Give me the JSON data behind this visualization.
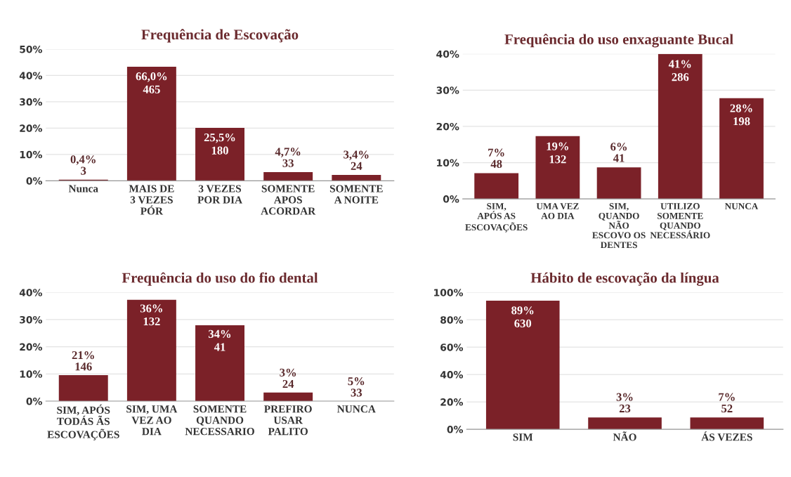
{
  "chart_data": [
    {
      "type": "bar",
      "title": "Frequência de Escovação",
      "categories": [
        "Nunca",
        "MAIS DE\n3 VEZES\nPÓR",
        "3 VEZES\nPOR DIA",
        "SOMENTE\nAPOS\nACORDAR",
        "SOMENTE\nA NOITE"
      ],
      "values": [
        0.4,
        43.3,
        20.1,
        3.3,
        2.2
      ],
      "color": "#7b2128",
      "ylim": [
        0,
        50
      ],
      "yticks": [
        {
          "value": 0,
          "label": "0%"
        },
        {
          "value": 10,
          "label": "10%"
        },
        {
          "value": 20,
          "label": "20%"
        },
        {
          "value": 30,
          "label": "30%"
        },
        {
          "value": 40,
          "label": "40%"
        },
        {
          "value": 50,
          "label": "50%"
        }
      ],
      "grid": "y",
      "annotations": [
        {
          "text": "0,4%\n3",
          "x": "Nunca",
          "y": 0.4
        },
        {
          "text": "66,0%\n465",
          "x": "MAIS DE\n3 VEZES\nPÓR",
          "y": 43.3
        },
        {
          "text": "25,5%\n180",
          "x": "3 VEZES\nPOR DIA",
          "y": 20.1
        },
        {
          "text": "4,7%\n33",
          "x": "SOMENTE\nAPOS\nACORDAR",
          "y": 3.3
        },
        {
          "text": "3,4%\n24",
          "x": "SOMENTE\nA NOITE",
          "y": 2.2
        }
      ]
    },
    {
      "type": "bar",
      "title": "Frequência do uso enxaguante Bucal",
      "categories": [
        "SIM,\nAPÓS AS\nESCOVAÇÕES",
        "UMA VEZ\nAO DIA",
        "SIM,\nQUANDO\nNÃO\nESCOVO OS\nDENTES",
        "UTILIZO\nSOMENTE\nQUANDO\nNECESSÁRIO",
        "NUNCA"
      ],
      "values": [
        7.1,
        17.3,
        8.7,
        40,
        27.8
      ],
      "color": "#7b2128",
      "ylim": [
        0,
        40
      ],
      "yticks": [
        {
          "value": 0,
          "label": "0%"
        },
        {
          "value": 10,
          "label": "10%"
        },
        {
          "value": 20,
          "label": "20%"
        },
        {
          "value": 30,
          "label": "30%"
        },
        {
          "value": 40,
          "label": "40%"
        }
      ],
      "grid": "y",
      "annotations": [
        {
          "text": "7%\n48",
          "x": "SIM,\nAPÓS AS\nESCOVAÇÕES",
          "y": 7.1
        },
        {
          "text": "19%\n132",
          "x": "UMA VEZ\nAO DIA",
          "y": 17.3
        },
        {
          "text": "6%\n41",
          "x": "SIM,\nQUANDO\nNÃO\nESCOVO OS\nDENTES",
          "y": 8.7
        },
        {
          "text": "41%\n286",
          "x": "UTILIZO\nSOMENTE\nQUANDO\nNECESSÁRIO",
          "y": 40
        },
        {
          "text": "28%\n198",
          "x": "NUNCA",
          "y": 27.8
        }
      ]
    },
    {
      "type": "bar",
      "title": "Frequência do uso do fio dental",
      "categories": [
        "SIM, APÓS\nTODÁS ÃS\nESCOVAÇÕES",
        "SIM, UMA\nVEZ AO\nDIA",
        "SOMENTE\nQUANDO\nNECESSARIO",
        "PREFIRO\nUSAR\nPALITO",
        "NUNCA"
      ],
      "values": [
        9.6,
        37.3,
        27.9,
        3.2,
        0
      ],
      "color": "#7b2128",
      "ylim": [
        0,
        40
      ],
      "yticks": [
        {
          "value": 0,
          "label": "0%"
        },
        {
          "value": 10,
          "label": "10%"
        },
        {
          "value": 20,
          "label": "20%"
        },
        {
          "value": 30,
          "label": "30%"
        },
        {
          "value": 40,
          "label": "40%"
        }
      ],
      "grid": "y",
      "annotations": [
        {
          "text": "21%\n146",
          "x": "SIM, APÓS\nTODÁS ÃS\nESCOVAÇÕES",
          "y": 9.6
        },
        {
          "text": "36%\n132",
          "x": "SIM, UMA\nVEZ AO\nDIA",
          "y": 37.3
        },
        {
          "text": "34%\n41",
          "x": "SOMENTE\nQUANDO\nNECESSARIO",
          "y": 27.9
        },
        {
          "text": "3%\n24",
          "x": "PREFIRO\nUSAR\nPALITO",
          "y": 3.2
        },
        {
          "text": "5%\n33",
          "x": "NUNCA",
          "y": 0
        }
      ]
    },
    {
      "type": "bar",
      "title": "Hábito de escovação da língua",
      "categories": [
        "SIM",
        "NÃO",
        "ÁS VEZES"
      ],
      "values": [
        94.0,
        8.6,
        8.6
      ],
      "color": "#7b2128",
      "ylim": [
        0,
        100
      ],
      "yticks": [
        {
          "value": 0,
          "label": "0%"
        },
        {
          "value": 20,
          "label": "20%"
        },
        {
          "value": 40,
          "label": "40%"
        },
        {
          "value": 60,
          "label": "60%"
        },
        {
          "value": 80,
          "label": "80%"
        },
        {
          "value": 100,
          "label": "100%"
        }
      ],
      "grid": "y",
      "annotations": [
        {
          "text": "89%\n630",
          "x": "SIM",
          "y": 94.0
        },
        {
          "text": "3%\n23",
          "x": "NÃO",
          "y": 8.6
        },
        {
          "text": "7%\n52",
          "x": "ÁS VEZES",
          "y": 8.6
        }
      ]
    }
  ]
}
